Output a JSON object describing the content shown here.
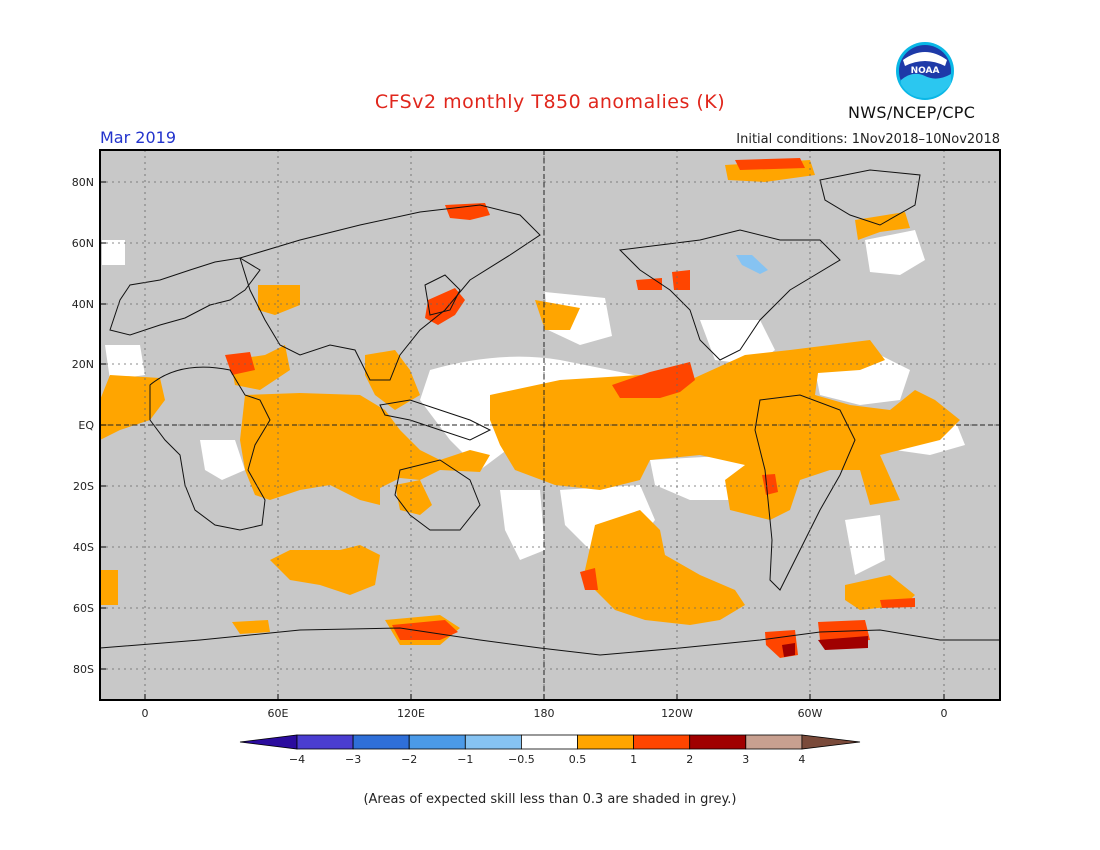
{
  "title": "CFSv2 monthly T850 anomalies (K)",
  "month": "Mar 2019",
  "initial_conditions": "Initial conditions: 1Nov2018–10Nov2018",
  "agency": "NWS/NCEP/CPC",
  "logo_text": "NOAA",
  "lat_labels": [
    "80N",
    "60N",
    "40N",
    "20N",
    "EQ",
    "20S",
    "40S",
    "60S",
    "80S"
  ],
  "lon_labels": [
    "0",
    "60E",
    "120E",
    "180",
    "120W",
    "60W",
    "0"
  ],
  "legend": {
    "ticks": [
      "−4",
      "−3",
      "−2",
      "−1",
      "−0.5",
      "0.5",
      "1",
      "2",
      "3",
      "4"
    ],
    "colors": [
      "#2b0c9e",
      "#4a3dd0",
      "#2f6fd8",
      "#4b9ae8",
      "#86c3f2",
      "#ffffff",
      "#ffa500",
      "#ff4500",
      "#a00000",
      "#c8a090",
      "#7a4a3a"
    ]
  },
  "skill_note": "(Areas of expected skill less than 0.3 are shaded in grey.)",
  "map_colors": {
    "grey": "#c8c8c8",
    "orange": "#ffa500",
    "red": "#ff4500",
    "darkred": "#a00000",
    "blue": "#86c3f2"
  }
}
